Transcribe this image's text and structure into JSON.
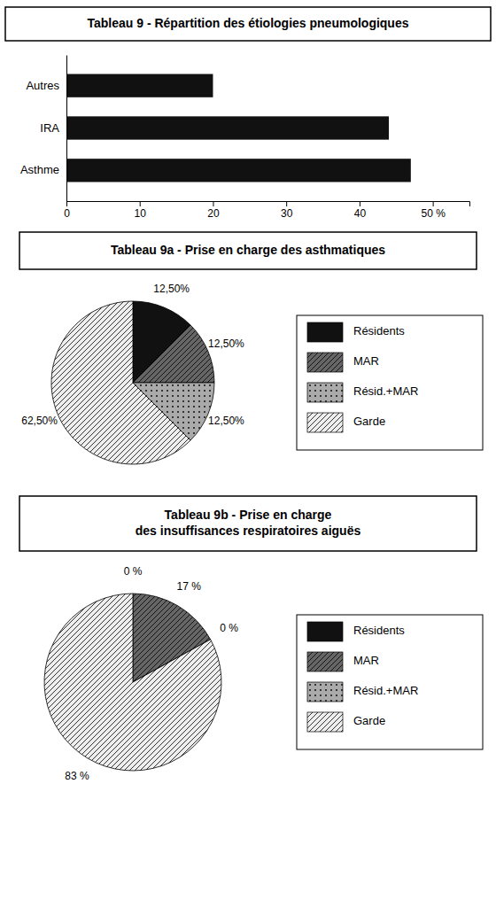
{
  "chart_data": [
    {
      "type": "bar",
      "title": "Tableau 9 - Répartition des étiologies pneumologiques",
      "orientation": "horizontal",
      "categories": [
        "Asthme",
        "IRA",
        "Autres"
      ],
      "values": [
        47,
        44,
        20
      ],
      "color": "#111111",
      "xlim": [
        0,
        55
      ],
      "xticks": [
        0,
        10,
        20,
        30,
        40,
        {
          "value": 50,
          "label": "50 %"
        }
      ],
      "grid": false
    },
    {
      "type": "pie",
      "title": "Tableau 9a - Prise en charge des asthmatiques",
      "categories": [
        "Résidents",
        "MAR",
        "Résid.+MAR",
        "Garde"
      ],
      "values": [
        12.5,
        12.5,
        12.5,
        62.5
      ],
      "value_labels": [
        "12,50%",
        "12,50%",
        "12,50%",
        "62,50%"
      ],
      "colors": [
        "#111111",
        "#666666",
        "#aaaaaa",
        "#eeeeee"
      ],
      "data_labels": true,
      "legend": "right"
    },
    {
      "type": "pie",
      "title": "Tableau 9b - Prise en charge\ndes insuffisances respiratoires aiguës",
      "categories": [
        "Résidents",
        "MAR",
        "Résid.+MAR",
        "Garde"
      ],
      "values": [
        0.001,
        17,
        0.001,
        83
      ],
      "value_labels": [
        "0 %",
        "17 %",
        "0 %",
        "83 %"
      ],
      "colors": [
        "#111111",
        "#666666",
        "#aaaaaa",
        "#eeeeee"
      ],
      "data_labels": true,
      "legend": "right"
    }
  ]
}
